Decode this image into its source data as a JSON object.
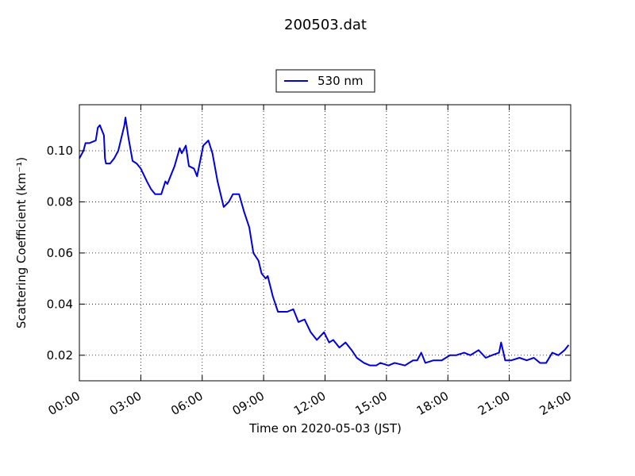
{
  "chart_data": {
    "type": "line",
    "title": "200503.dat",
    "xlabel": "Time on 2020-05-03 (JST)",
    "ylabel": "Scattering Coefficient (km⁻¹)",
    "legend": "upper center",
    "grid": true,
    "xlim": [
      "00:00",
      "24:00"
    ],
    "xticks": [
      "00:00",
      "03:00",
      "06:00",
      "09:00",
      "12:00",
      "15:00",
      "18:00",
      "21:00",
      "24:00"
    ],
    "ylim": [
      0.01,
      0.118
    ],
    "yticks": [
      0.02,
      0.04,
      0.06,
      0.08,
      {
        "value": 0.1,
        "label": "0.10"
      }
    ],
    "x": [
      "00:00",
      "00:12",
      "00:18",
      "00:30",
      "00:48",
      "00:54",
      "01:00",
      "01:12",
      "01:15",
      "01:18",
      "01:30",
      "01:42",
      "01:54",
      "02:12",
      "02:15",
      "02:24",
      "02:36",
      "02:48",
      "03:00",
      "03:18",
      "03:30",
      "03:42",
      "04:00",
      "04:12",
      "04:18",
      "04:39",
      "04:54",
      "05:00",
      "05:12",
      "05:21",
      "05:36",
      "05:45",
      "06:03",
      "06:18",
      "06:30",
      "06:45",
      "07:03",
      "07:18",
      "07:30",
      "07:48",
      "08:03",
      "08:18",
      "08:30",
      "08:45",
      "08:54",
      "09:06",
      "09:12",
      "09:27",
      "09:42",
      "09:54",
      "10:09",
      "10:27",
      "10:42",
      "11:00",
      "11:18",
      "11:36",
      "11:57",
      "12:12",
      "12:24",
      "12:42",
      "13:00",
      "13:18",
      "13:33",
      "13:54",
      "14:12",
      "14:30",
      "14:42",
      "15:06",
      "15:24",
      "15:54",
      "16:18",
      "16:30",
      "16:42",
      "16:54",
      "17:18",
      "17:42",
      "18:06",
      "18:24",
      "18:48",
      "19:06",
      "19:30",
      "19:51",
      "20:09",
      "20:30",
      "20:36",
      "20:48",
      "21:06",
      "21:30",
      "21:51",
      "22:12",
      "22:30",
      "22:48",
      "23:06",
      "23:24",
      "23:42",
      "23:54"
    ],
    "series": [
      {
        "name": "530 nm",
        "color": "#0000dd",
        "values": [
          0.097,
          0.1,
          0.103,
          0.103,
          0.104,
          0.109,
          0.11,
          0.106,
          0.097,
          0.095,
          0.095,
          0.097,
          0.1,
          0.11,
          0.113,
          0.105,
          0.096,
          0.095,
          0.093,
          0.088,
          0.085,
          0.083,
          0.083,
          0.088,
          0.087,
          0.094,
          0.101,
          0.099,
          0.102,
          0.094,
          0.093,
          0.09,
          0.102,
          0.104,
          0.099,
          0.088,
          0.078,
          0.08,
          0.083,
          0.083,
          0.076,
          0.07,
          0.06,
          0.057,
          0.052,
          0.05,
          0.051,
          0.043,
          0.037,
          0.037,
          0.037,
          0.038,
          0.033,
          0.034,
          0.029,
          0.026,
          0.029,
          0.025,
          0.026,
          0.023,
          0.025,
          0.022,
          0.019,
          0.017,
          0.016,
          0.016,
          0.017,
          0.016,
          0.017,
          0.016,
          0.018,
          0.018,
          0.021,
          0.017,
          0.018,
          0.018,
          0.02,
          0.02,
          0.021,
          0.02,
          0.022,
          0.019,
          0.02,
          0.021,
          0.025,
          0.018,
          0.018,
          0.019,
          0.018,
          0.019,
          0.017,
          0.017,
          0.021,
          0.02,
          0.022,
          0.024
        ]
      }
    ]
  }
}
